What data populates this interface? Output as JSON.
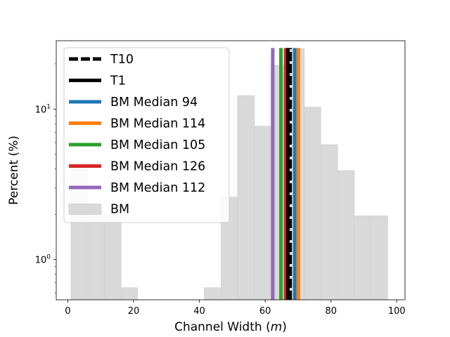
{
  "chart_data": {
    "type": "histogram",
    "title": "",
    "xlabel": "Channel Width (",
    "xlabel_var": "m",
    "xlabel_end": ")",
    "ylabel": "Percent (%)",
    "xscale": "linear",
    "yscale": "log",
    "xlim": [
      -3.5,
      102.5
    ],
    "ylim": [
      0.54,
      28.5
    ],
    "x_ticks": [
      0,
      20,
      40,
      60,
      80,
      100
    ],
    "x_tick_labels": [
      "0",
      "20",
      "40",
      "60",
      "80",
      "100"
    ],
    "y_ticks": [
      1,
      10
    ],
    "y_tick_base": "10",
    "y_tick_exps": [
      "0",
      "1"
    ],
    "grid": false,
    "legend_position": "upper-left",
    "histogram": {
      "name": "BM",
      "color": "#d9d9d9",
      "bins": [
        {
          "x0": 1.0,
          "x1": 6.1,
          "value": 4.3
        },
        {
          "x0": 6.1,
          "x1": 11.1,
          "value": 1.95
        },
        {
          "x0": 11.1,
          "x1": 16.2,
          "value": 1.95
        },
        {
          "x0": 16.2,
          "x1": 21.2,
          "value": 0.65
        },
        {
          "x0": 41.5,
          "x1": 46.6,
          "value": 0.65
        },
        {
          "x0": 46.6,
          "x1": 51.6,
          "value": 2.6
        },
        {
          "x0": 51.6,
          "x1": 56.7,
          "value": 12.3
        },
        {
          "x0": 56.7,
          "x1": 61.8,
          "value": 7.7
        },
        {
          "x0": 61.8,
          "x1": 66.8,
          "value": 19.5
        },
        {
          "x0": 66.8,
          "x1": 71.9,
          "value": 25.2
        },
        {
          "x0": 71.9,
          "x1": 76.9,
          "value": 10.3
        },
        {
          "x0": 76.9,
          "x1": 82.0,
          "value": 5.8
        },
        {
          "x0": 82.0,
          "x1": 87.1,
          "value": 3.9
        },
        {
          "x0": 87.1,
          "x1": 92.1,
          "value": 1.95
        },
        {
          "x0": 92.1,
          "x1": 97.2,
          "value": 1.95
        }
      ]
    },
    "vlines": [
      {
        "name": "T10",
        "x": 67.6,
        "color": "#000000",
        "style": "dashed",
        "y_top": 25.5
      },
      {
        "name": "T1",
        "x": 66.9,
        "color": "#000000",
        "style": "solid",
        "y_top": 25.5
      },
      {
        "name": "BM Median 94",
        "x": 69.0,
        "color": "#1f77b4",
        "style": "solid",
        "y_top": 25.5
      },
      {
        "name": "BM Median 114",
        "x": 70.1,
        "color": "#ff7f0e",
        "style": "solid",
        "y_top": 25.5
      },
      {
        "name": "BM Median 105",
        "x": 64.8,
        "color": "#2ca02c",
        "style": "solid",
        "y_top": 25.5
      },
      {
        "name": "BM Median 126",
        "x": 66.2,
        "color": "#d62728",
        "style": "solid",
        "y_top": 25.5
      },
      {
        "name": "BM Median 112",
        "x": 62.3,
        "color": "#9467bd",
        "style": "solid",
        "y_top": 25.5
      }
    ],
    "legend": [
      {
        "label": "T10",
        "kind": "dashed",
        "color": "#000000"
      },
      {
        "label": "T1",
        "kind": "line",
        "color": "#000000"
      },
      {
        "label": "BM Median 94",
        "kind": "line",
        "color": "#1f77b4"
      },
      {
        "label": "BM Median 114",
        "kind": "line",
        "color": "#ff7f0e"
      },
      {
        "label": "BM Median 105",
        "kind": "line",
        "color": "#2ca02c"
      },
      {
        "label": "BM Median 126",
        "kind": "line",
        "color": "#d62728"
      },
      {
        "label": "BM Median 112",
        "kind": "line",
        "color": "#9467bd"
      },
      {
        "label": "BM",
        "kind": "patch",
        "color": "#d9d9d9"
      }
    ]
  }
}
